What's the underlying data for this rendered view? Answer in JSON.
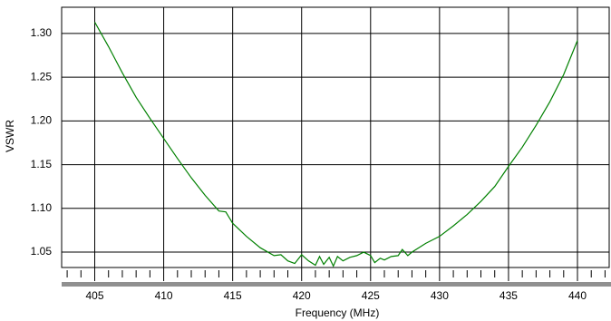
{
  "chart_data": {
    "type": "line",
    "x_label": "Frequency (MHz)",
    "y_label": "VSWR",
    "x": [
      405,
      406,
      407,
      408,
      409,
      410,
      411,
      412,
      413,
      414,
      414.5,
      415,
      416,
      417,
      418,
      418.5,
      419,
      419.5,
      420,
      420.5,
      421,
      421.3,
      421.6,
      422,
      422.3,
      422.6,
      423,
      423.5,
      424,
      424.5,
      425,
      425.3,
      425.7,
      426,
      426.5,
      427,
      427.3,
      427.7,
      428,
      429,
      430,
      431,
      432,
      433,
      434,
      435,
      436,
      437,
      438,
      439,
      440
    ],
    "series": [
      {
        "color": "#008000",
        "values": [
          1.313,
          1.285,
          1.255,
          1.227,
          1.203,
          1.18,
          1.157,
          1.135,
          1.115,
          1.097,
          1.096,
          1.083,
          1.068,
          1.055,
          1.046,
          1.047,
          1.04,
          1.037,
          1.047,
          1.04,
          1.035,
          1.045,
          1.036,
          1.044,
          1.034,
          1.045,
          1.04,
          1.044,
          1.046,
          1.05,
          1.046,
          1.038,
          1.043,
          1.041,
          1.045,
          1.046,
          1.053,
          1.046,
          1.05,
          1.06,
          1.068,
          1.08,
          1.093,
          1.108,
          1.125,
          1.148,
          1.17,
          1.195,
          1.222,
          1.253,
          1.292
        ]
      }
    ],
    "xlim": [
      402.6,
      442.3
    ],
    "ylim": [
      1.0324,
      1.33
    ],
    "xticks": [
      405,
      410,
      415,
      420,
      425,
      430,
      435,
      440
    ],
    "xminorticks": [
      403,
      404,
      406,
      407,
      408,
      409,
      411,
      412,
      413,
      414,
      416,
      417,
      418,
      419,
      421,
      422,
      423,
      424,
      426,
      427,
      428,
      429,
      431,
      432,
      433,
      434,
      436,
      437,
      438,
      439,
      441,
      442
    ],
    "yticks": [
      {
        "value": 1.05,
        "label": "1.05"
      },
      {
        "value": 1.1,
        "label": "1.10"
      },
      {
        "value": 1.15,
        "label": "1.15"
      },
      {
        "value": 1.2,
        "label": "1.20"
      },
      {
        "value": 1.25,
        "label": "1.25"
      },
      {
        "value": 1.3,
        "label": "1.30"
      }
    ],
    "grid": true
  }
}
